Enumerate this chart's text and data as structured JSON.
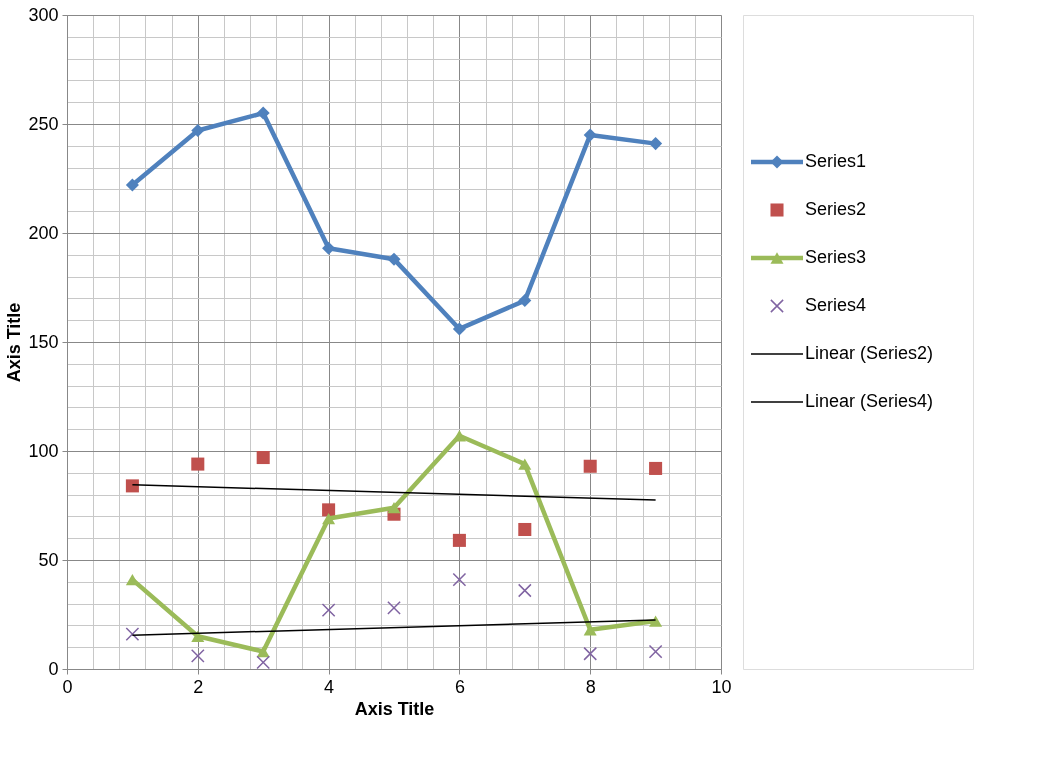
{
  "chart_data": {
    "type": "line",
    "xlabel": "Axis Title",
    "ylabel": "Axis Title",
    "xlim": [
      0,
      10
    ],
    "ylim": [
      0,
      300
    ],
    "xticks": [
      0,
      2,
      4,
      6,
      8,
      10
    ],
    "yticks": [
      0,
      50,
      100,
      150,
      200,
      250,
      300
    ],
    "grid": true,
    "legend": "right",
    "series": [
      {
        "name": "Series1",
        "marker": "diamond",
        "color": "#4f81bd",
        "x": [
          1,
          2,
          3,
          4,
          5,
          6,
          7,
          8,
          9
        ],
        "values": [
          222,
          247,
          255,
          193,
          188,
          156,
          169,
          245,
          241
        ]
      },
      {
        "name": "Series2",
        "type": "scatter",
        "marker": "square",
        "color": "#c0504d",
        "x": [
          1,
          2,
          3,
          4,
          5,
          6,
          7,
          8,
          9
        ],
        "values": [
          84,
          94,
          97,
          73,
          71,
          59,
          64,
          93,
          92
        ]
      },
      {
        "name": "Series3",
        "marker": "triangle",
        "color": "#9bbb59",
        "x": [
          1,
          2,
          3,
          4,
          5,
          6,
          7,
          8,
          9
        ],
        "values": [
          41,
          15,
          8,
          69,
          74,
          107,
          94,
          18,
          22
        ]
      },
      {
        "name": "Series4",
        "type": "scatter",
        "marker": "cross",
        "color": "#8064a2",
        "x": [
          1,
          2,
          3,
          4,
          5,
          6,
          7,
          8,
          9
        ],
        "values": [
          16,
          6,
          3,
          27,
          28,
          41,
          36,
          7,
          8
        ]
      },
      {
        "name": "Linear (Series2)",
        "marker": "none",
        "color": "#000000",
        "x": [
          1,
          9
        ],
        "values": [
          84.5,
          77.5
        ]
      },
      {
        "name": "Linear (Series4)",
        "marker": "none",
        "color": "#000000",
        "x": [
          1,
          9
        ],
        "values": [
          15.5,
          22.5
        ]
      }
    ]
  }
}
